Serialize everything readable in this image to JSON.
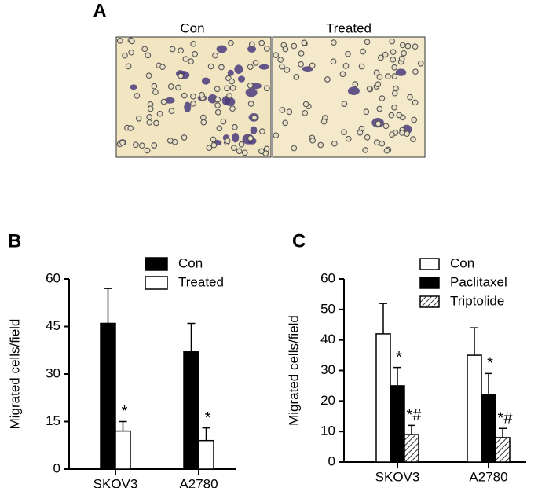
{
  "panel_a": {
    "label": "A",
    "images": [
      {
        "caption": "Con"
      },
      {
        "caption": "Treated"
      }
    ]
  },
  "chart_data": [
    {
      "type": "bar",
      "panel_label": "B",
      "ylabel": "Migrated cells/field",
      "categories": [
        "SKOV3",
        "A2780"
      ],
      "series": [
        {
          "name": "Con",
          "color": "#000000",
          "values": [
            46,
            37
          ],
          "errors": [
            11,
            9
          ]
        },
        {
          "name": "Treated",
          "color": "#ffffff",
          "values": [
            12,
            9
          ],
          "errors": [
            3,
            4
          ],
          "significance": [
            "*",
            "*"
          ]
        }
      ],
      "ylim": [
        0,
        60
      ],
      "yticks": [
        0,
        15,
        30,
        45,
        60
      ],
      "grid": false
    },
    {
      "type": "bar",
      "panel_label": "C",
      "ylabel": "Migrated cells/field",
      "categories": [
        "SKOV3",
        "A2780"
      ],
      "series": [
        {
          "name": "Con",
          "color": "#ffffff",
          "values": [
            42,
            35
          ],
          "errors": [
            10,
            9
          ]
        },
        {
          "name": "Paclitaxel",
          "color": "#000000",
          "values": [
            25,
            22
          ],
          "errors": [
            6,
            7
          ],
          "significance": [
            "*",
            "*"
          ]
        },
        {
          "name": "Triptolide",
          "color": "#ffffff",
          "hatch": true,
          "values": [
            9,
            8
          ],
          "errors": [
            3,
            3
          ],
          "significance": [
            "*#",
            "*#"
          ]
        }
      ],
      "ylim": [
        0,
        60
      ],
      "yticks": [
        0,
        10,
        20,
        30,
        40,
        50,
        60
      ],
      "grid": false
    }
  ]
}
